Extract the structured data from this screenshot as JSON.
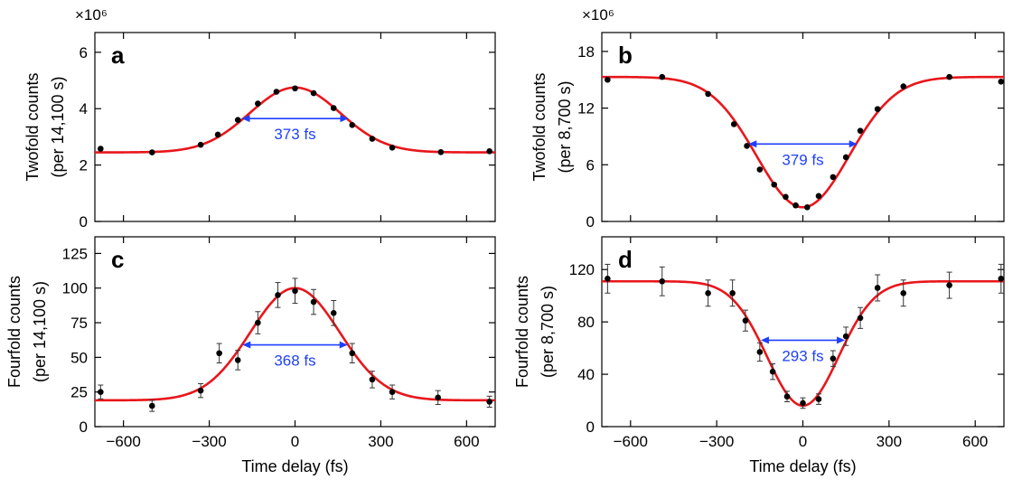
{
  "colors": {
    "fit": "#e8161b",
    "data": "#000000",
    "arrow": "#1f3fff"
  },
  "chart_data": [
    {
      "type": "scatter",
      "panel": "a",
      "xlim": [
        -700,
        700
      ],
      "ylim": [
        0,
        6.7
      ],
      "xticks": [
        -600,
        -300,
        0,
        300,
        600
      ],
      "xtick_labels": [
        "",
        "",
        "",
        "",
        ""
      ],
      "yticks": [
        0,
        2,
        4,
        6
      ],
      "ytick_labels": [
        "0",
        "2",
        "4",
        "6"
      ],
      "multiplier": "×10⁶",
      "ylabel": [
        "Twofold counts",
        "(per 14,100 s)"
      ],
      "xlabel": "",
      "fit": {
        "shape": "peak",
        "baseline": 2.45,
        "amplitude": 2.3,
        "center": 0,
        "fwhm": 373
      },
      "fwhm_label": "373 fs",
      "arrow_y": 3.65,
      "points": {
        "x": [
          -680,
          -500,
          -330,
          -270,
          -200,
          -130,
          -65,
          0,
          65,
          135,
          200,
          270,
          340,
          510,
          680
        ],
        "y": [
          2.58,
          2.45,
          2.72,
          3.08,
          3.6,
          4.18,
          4.6,
          4.72,
          4.55,
          4.02,
          3.42,
          2.93,
          2.62,
          2.46,
          2.49
        ],
        "err": []
      }
    },
    {
      "type": "scatter",
      "panel": "b",
      "xlim": [
        -700,
        700
      ],
      "ylim": [
        0,
        20
      ],
      "xticks": [
        -600,
        -300,
        0,
        300,
        600
      ],
      "xtick_labels": [
        "",
        "",
        "",
        "",
        ""
      ],
      "yticks": [
        0,
        6,
        12,
        18
      ],
      "ytick_labels": [
        "0",
        "6",
        "12",
        "18"
      ],
      "multiplier": "×10⁶",
      "ylabel": [
        "Twofold counts",
        "(per 8,700 s)"
      ],
      "xlabel": "",
      "fit": {
        "shape": "dip",
        "baseline": 15.3,
        "amplitude": 13.8,
        "center": 0,
        "fwhm": 379
      },
      "fwhm_label": "379 fs",
      "arrow_y": 8.2,
      "points": {
        "x": [
          -680,
          -490,
          -330,
          -240,
          -195,
          -150,
          -100,
          -60,
          -25,
          15,
          55,
          105,
          150,
          200,
          260,
          350,
          510,
          690
        ],
        "y": [
          15.0,
          15.3,
          13.5,
          10.3,
          8.0,
          5.5,
          3.9,
          2.6,
          1.7,
          1.5,
          2.7,
          4.7,
          6.8,
          9.6,
          11.9,
          14.3,
          15.3,
          14.8
        ],
        "err": []
      }
    },
    {
      "type": "scatter",
      "panel": "c",
      "xlim": [
        -700,
        700
      ],
      "ylim": [
        0,
        137
      ],
      "xticks": [
        -600,
        -300,
        0,
        300,
        600
      ],
      "xtick_labels": [
        "−600",
        "−300",
        "0",
        "300",
        "600"
      ],
      "yticks": [
        0,
        25,
        50,
        75,
        100,
        125
      ],
      "ytick_labels": [
        "0",
        "25",
        "50",
        "75",
        "100",
        "125"
      ],
      "multiplier": "",
      "ylabel": [
        "Fourfold counts",
        "(per 14,100 s)"
      ],
      "xlabel": "Time delay (fs)",
      "fit": {
        "shape": "peak",
        "baseline": 19,
        "amplitude": 81,
        "center": 0,
        "fwhm": 368
      },
      "fwhm_label": "368 fs",
      "arrow_y": 59,
      "points": {
        "x": [
          -680,
          -500,
          -330,
          -265,
          -200,
          -130,
          -60,
          0,
          65,
          135,
          200,
          270,
          340,
          500,
          680
        ],
        "y": [
          25,
          15,
          26,
          53,
          48,
          75,
          95,
          98,
          90,
          82,
          53,
          34,
          25,
          21,
          18
        ],
        "err": [
          5,
          4,
          5,
          7,
          7,
          8,
          9,
          9,
          9,
          9,
          7,
          6,
          5,
          5,
          4
        ]
      }
    },
    {
      "type": "scatter",
      "panel": "d",
      "xlim": [
        -700,
        700
      ],
      "ylim": [
        0,
        145
      ],
      "xticks": [
        -600,
        -300,
        0,
        300,
        600
      ],
      "xtick_labels": [
        "−600",
        "−300",
        "0",
        "300",
        "600"
      ],
      "yticks": [
        0,
        40,
        80,
        120
      ],
      "ytick_labels": [
        "0",
        "40",
        "80",
        "120"
      ],
      "multiplier": "",
      "ylabel": [
        "Fourfold counts",
        "(per 8,700 s)"
      ],
      "xlabel": "Time delay (fs)",
      "fit": {
        "shape": "dip",
        "baseline": 111,
        "amplitude": 95,
        "center": 0,
        "fwhm": 293
      },
      "fwhm_label": "293 fs",
      "arrow_y": 66,
      "points": {
        "x": [
          -680,
          -490,
          -330,
          -245,
          -200,
          -150,
          -105,
          -55,
          0,
          55,
          105,
          150,
          200,
          260,
          350,
          510,
          690
        ],
        "y": [
          113,
          111,
          102,
          102,
          81,
          57,
          42,
          23,
          18,
          21,
          52,
          69,
          83,
          106,
          102,
          108,
          113
        ],
        "err": [
          11,
          11,
          10,
          10,
          8,
          7,
          6,
          4,
          4,
          4,
          6,
          7,
          8,
          10,
          10,
          10,
          11
        ]
      }
    }
  ]
}
